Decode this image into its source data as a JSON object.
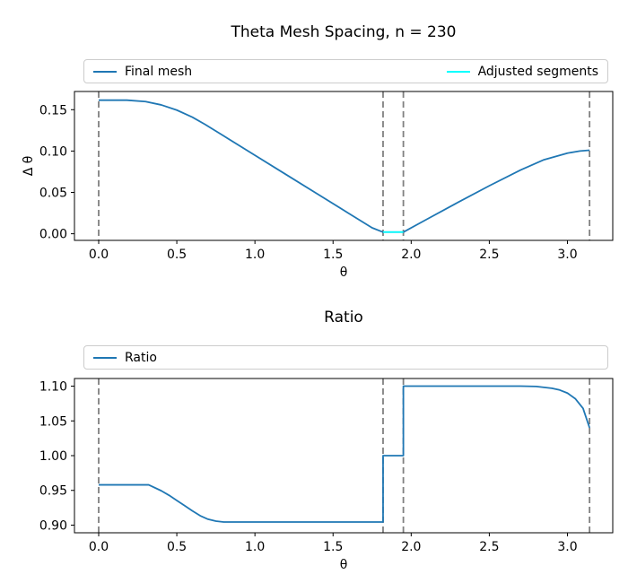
{
  "figure": {
    "background": "#ffffff",
    "line_blue": "#1f77b4",
    "line_cyan": "#00ffff",
    "vline_gray": "#808080",
    "legend_border": "#cccccc"
  },
  "chart_data": [
    {
      "type": "line",
      "title": "Theta Mesh Spacing, n = 230",
      "xlabel": "θ",
      "ylabel": "Δ θ",
      "xlim": [
        -0.155,
        3.29
      ],
      "ylim": [
        -0.008,
        0.172
      ],
      "grid": false,
      "legend_position": "above-axes, expanded full width, 2 columns",
      "xtick_vals": [
        0.0,
        0.5,
        1.0,
        1.5,
        2.0,
        2.5,
        3.0
      ],
      "xtick_labels": [
        "0.0",
        "0.5",
        "1.0",
        "1.5",
        "2.0",
        "2.5",
        "3.0"
      ],
      "ytick_vals": [
        0.0,
        0.05,
        0.1,
        0.15
      ],
      "ytick_labels": [
        "0.00",
        "0.05",
        "0.10",
        "0.15"
      ],
      "vlines": {
        "style": "dashed",
        "color": "#808080",
        "x": [
          0.0,
          1.82,
          1.95,
          3.1416
        ]
      },
      "series": [
        {
          "name": "Final mesh",
          "color": "#1f77b4",
          "x": [
            0.0,
            0.18,
            0.3,
            0.4,
            0.5,
            0.6,
            0.68,
            0.8,
            1.0,
            1.2,
            1.4,
            1.6,
            1.75,
            1.82,
            1.95,
            2.1,
            2.3,
            2.5,
            2.7,
            2.85,
            3.0,
            3.08,
            3.1416
          ],
          "y": [
            0.1615,
            0.1615,
            0.1598,
            0.1558,
            0.1495,
            0.1409,
            0.1323,
            0.1183,
            0.0949,
            0.0715,
            0.0481,
            0.0247,
            0.0072,
            0.002,
            0.002,
            0.0175,
            0.038,
            0.058,
            0.077,
            0.0895,
            0.0975,
            0.1,
            0.101
          ]
        },
        {
          "name": "Adjusted segments",
          "color": "#00ffff",
          "x": [
            1.82,
            1.95
          ],
          "y": [
            0.002,
            0.002
          ]
        }
      ]
    },
    {
      "type": "line",
      "title": "Ratio",
      "xlabel": "θ",
      "ylabel": "",
      "xlim": [
        -0.155,
        3.29
      ],
      "ylim": [
        0.889,
        1.111
      ],
      "grid": false,
      "legend_position": "above-axes, expanded full width",
      "xtick_vals": [
        0.0,
        0.5,
        1.0,
        1.5,
        2.0,
        2.5,
        3.0
      ],
      "xtick_labels": [
        "0.0",
        "0.5",
        "1.0",
        "1.5",
        "2.0",
        "2.5",
        "3.0"
      ],
      "ytick_vals": [
        0.9,
        0.95,
        1.0,
        1.05,
        1.1
      ],
      "ytick_labels": [
        "0.90",
        "0.95",
        "1.00",
        "1.05",
        "1.10"
      ],
      "vlines": {
        "style": "dashed",
        "color": "#808080",
        "x": [
          0.0,
          1.82,
          1.95,
          3.1416
        ]
      },
      "series": [
        {
          "name": "Ratio",
          "color": "#1f77b4",
          "x": [
            0.0,
            0.32,
            0.4,
            0.45,
            0.5,
            0.55,
            0.6,
            0.65,
            0.7,
            0.75,
            0.8,
            1.82,
            1.82,
            1.95,
            1.95,
            2.7,
            2.8,
            2.9,
            2.95,
            3.0,
            3.05,
            3.1,
            3.1416
          ],
          "y": [
            0.958,
            0.958,
            0.9495,
            0.943,
            0.9355,
            0.928,
            0.9205,
            0.9135,
            0.9085,
            0.9058,
            0.9045,
            0.9045,
            1.0,
            1.0,
            1.1,
            1.1,
            1.0995,
            1.097,
            1.0945,
            1.09,
            1.082,
            1.068,
            1.04
          ]
        }
      ]
    }
  ]
}
